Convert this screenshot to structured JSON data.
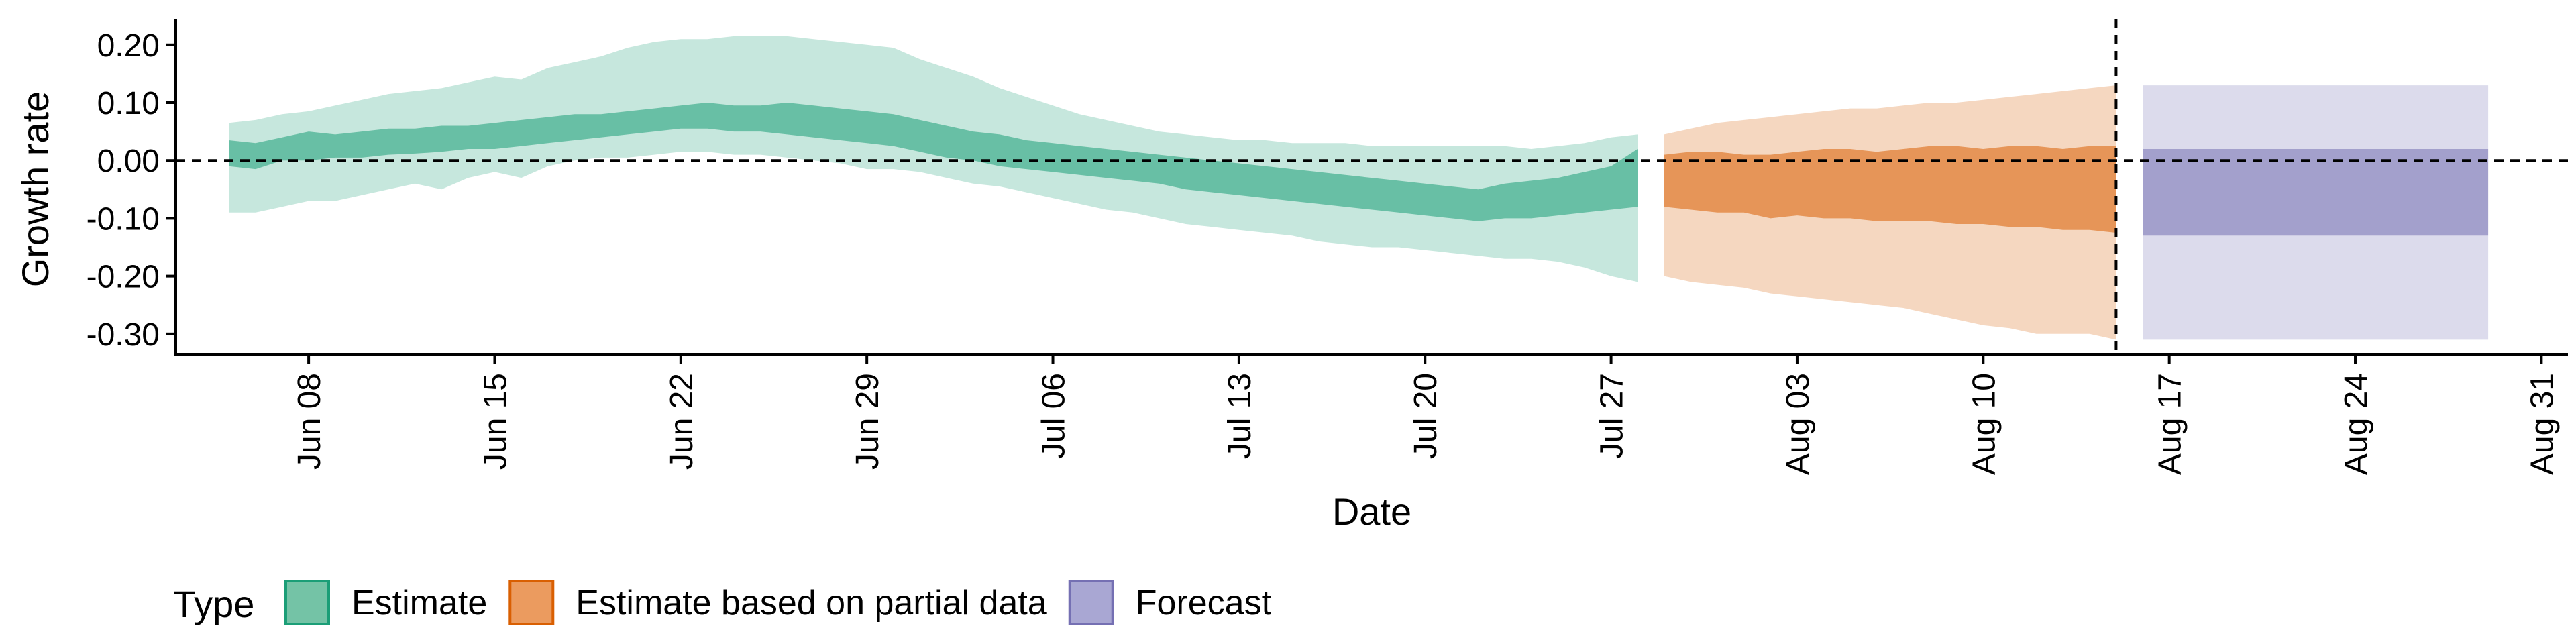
{
  "chart_data": {
    "type": "area",
    "xlabel": "Date",
    "ylabel": "Growth rate",
    "x_type": "date",
    "xlim": [
      "2020-06-03",
      "2020-09-01"
    ],
    "ylim": [
      -0.335,
      0.245
    ],
    "x_ticks": [
      {
        "date": "2020-06-08",
        "label": "Jun 08"
      },
      {
        "date": "2020-06-15",
        "label": "Jun 15"
      },
      {
        "date": "2020-06-22",
        "label": "Jun 22"
      },
      {
        "date": "2020-06-29",
        "label": "Jun 29"
      },
      {
        "date": "2020-07-06",
        "label": "Jul 06"
      },
      {
        "date": "2020-07-13",
        "label": "Jul 13"
      },
      {
        "date": "2020-07-20",
        "label": "Jul 20"
      },
      {
        "date": "2020-07-27",
        "label": "Jul 27"
      },
      {
        "date": "2020-08-03",
        "label": "Aug 03"
      },
      {
        "date": "2020-08-10",
        "label": "Aug 10"
      },
      {
        "date": "2020-08-17",
        "label": "Aug 17"
      },
      {
        "date": "2020-08-24",
        "label": "Aug 24"
      },
      {
        "date": "2020-08-31",
        "label": "Aug 31"
      }
    ],
    "y_ticks": [
      {
        "value": 0.2,
        "label": "0.20"
      },
      {
        "value": 0.1,
        "label": "0.10"
      },
      {
        "value": 0.0,
        "label": "0.00"
      },
      {
        "value": -0.1,
        "label": "-0.10"
      },
      {
        "value": -0.2,
        "label": "-0.20"
      },
      {
        "value": -0.3,
        "label": "-0.30"
      }
    ],
    "reference_lines": [
      {
        "axis": "y",
        "value": 0.0,
        "style": "dashed"
      },
      {
        "axis": "x",
        "value": "2020-08-15",
        "style": "dashed"
      }
    ],
    "grid": false,
    "legend": {
      "position": "bottom-left",
      "title": "Type",
      "items": [
        {
          "label": "Estimate",
          "fill": "#74c3a6",
          "border": "#1b9e77"
        },
        {
          "label": "Estimate based on partial data",
          "fill": "#eb9b5f",
          "border": "#d95f02"
        },
        {
          "label": "Forecast",
          "fill": "#a9a7d3",
          "border": "#7570b3"
        }
      ]
    },
    "series": [
      {
        "name": "Estimate",
        "color": "#1b9e77",
        "dates": [
          "2020-06-05",
          "2020-06-06",
          "2020-06-07",
          "2020-06-08",
          "2020-06-09",
          "2020-06-10",
          "2020-06-11",
          "2020-06-12",
          "2020-06-13",
          "2020-06-14",
          "2020-06-15",
          "2020-06-16",
          "2020-06-17",
          "2020-06-18",
          "2020-06-19",
          "2020-06-20",
          "2020-06-21",
          "2020-06-22",
          "2020-06-23",
          "2020-06-24",
          "2020-06-25",
          "2020-06-26",
          "2020-06-27",
          "2020-06-28",
          "2020-06-29",
          "2020-06-30",
          "2020-07-01",
          "2020-07-02",
          "2020-07-03",
          "2020-07-04",
          "2020-07-05",
          "2020-07-06",
          "2020-07-07",
          "2020-07-08",
          "2020-07-09",
          "2020-07-10",
          "2020-07-11",
          "2020-07-12",
          "2020-07-13",
          "2020-07-14",
          "2020-07-15",
          "2020-07-16",
          "2020-07-17",
          "2020-07-18",
          "2020-07-19",
          "2020-07-20",
          "2020-07-21",
          "2020-07-22",
          "2020-07-23",
          "2020-07-24",
          "2020-07-25",
          "2020-07-26",
          "2020-07-27",
          "2020-07-28"
        ],
        "lower_90": [
          -0.09,
          -0.09,
          -0.08,
          -0.07,
          -0.07,
          -0.06,
          -0.05,
          -0.04,
          -0.05,
          -0.03,
          -0.02,
          -0.03,
          -0.01,
          0.0,
          0.005,
          0.005,
          0.01,
          0.015,
          0.015,
          0.01,
          0.01,
          0.005,
          0.0,
          -0.005,
          -0.015,
          -0.015,
          -0.02,
          -0.03,
          -0.04,
          -0.045,
          -0.055,
          -0.065,
          -0.075,
          -0.085,
          -0.09,
          -0.1,
          -0.11,
          -0.115,
          -0.12,
          -0.125,
          -0.13,
          -0.14,
          -0.145,
          -0.15,
          -0.15,
          -0.155,
          -0.16,
          -0.165,
          -0.17,
          -0.17,
          -0.175,
          -0.185,
          -0.2,
          -0.21
        ],
        "lower_50": [
          -0.01,
          -0.015,
          0.0,
          0.0,
          0.005,
          0.005,
          0.01,
          0.012,
          0.015,
          0.02,
          0.02,
          0.025,
          0.03,
          0.035,
          0.04,
          0.045,
          0.05,
          0.055,
          0.055,
          0.05,
          0.05,
          0.045,
          0.04,
          0.035,
          0.03,
          0.025,
          0.015,
          0.005,
          0.0,
          -0.01,
          -0.015,
          -0.02,
          -0.025,
          -0.03,
          -0.035,
          -0.04,
          -0.05,
          -0.055,
          -0.06,
          -0.065,
          -0.07,
          -0.075,
          -0.08,
          -0.085,
          -0.09,
          -0.095,
          -0.1,
          -0.105,
          -0.1,
          -0.1,
          -0.095,
          -0.09,
          -0.085,
          -0.08
        ],
        "upper_50": [
          0.035,
          0.03,
          0.04,
          0.05,
          0.045,
          0.05,
          0.055,
          0.055,
          0.06,
          0.06,
          0.065,
          0.07,
          0.075,
          0.08,
          0.08,
          0.085,
          0.09,
          0.095,
          0.1,
          0.095,
          0.095,
          0.1,
          0.095,
          0.09,
          0.085,
          0.08,
          0.07,
          0.06,
          0.05,
          0.045,
          0.035,
          0.03,
          0.025,
          0.02,
          0.015,
          0.01,
          0.005,
          0.0,
          -0.005,
          -0.01,
          -0.015,
          -0.02,
          -0.025,
          -0.03,
          -0.035,
          -0.04,
          -0.045,
          -0.05,
          -0.04,
          -0.035,
          -0.03,
          -0.02,
          -0.01,
          0.02
        ],
        "upper_90": [
          0.065,
          0.07,
          0.08,
          0.085,
          0.095,
          0.105,
          0.115,
          0.12,
          0.125,
          0.135,
          0.145,
          0.14,
          0.16,
          0.17,
          0.18,
          0.195,
          0.205,
          0.21,
          0.21,
          0.215,
          0.215,
          0.215,
          0.21,
          0.205,
          0.2,
          0.195,
          0.175,
          0.16,
          0.145,
          0.125,
          0.11,
          0.095,
          0.08,
          0.07,
          0.06,
          0.05,
          0.045,
          0.04,
          0.035,
          0.035,
          0.03,
          0.03,
          0.03,
          0.025,
          0.025,
          0.025,
          0.025,
          0.025,
          0.025,
          0.02,
          0.025,
          0.03,
          0.04,
          0.045
        ]
      },
      {
        "name": "Estimate based on partial data",
        "color": "#d95f02",
        "dates": [
          "2020-07-29",
          "2020-07-30",
          "2020-07-31",
          "2020-08-01",
          "2020-08-02",
          "2020-08-03",
          "2020-08-04",
          "2020-08-05",
          "2020-08-06",
          "2020-08-07",
          "2020-08-08",
          "2020-08-09",
          "2020-08-10",
          "2020-08-11",
          "2020-08-12",
          "2020-08-13",
          "2020-08-14",
          "2020-08-15"
        ],
        "lower_90": [
          -0.2,
          -0.21,
          -0.215,
          -0.22,
          -0.23,
          -0.235,
          -0.24,
          -0.245,
          -0.25,
          -0.255,
          -0.265,
          -0.275,
          -0.285,
          -0.29,
          -0.3,
          -0.3,
          -0.3,
          -0.31
        ],
        "lower_50": [
          -0.08,
          -0.085,
          -0.09,
          -0.09,
          -0.1,
          -0.095,
          -0.1,
          -0.1,
          -0.105,
          -0.105,
          -0.105,
          -0.11,
          -0.11,
          -0.115,
          -0.115,
          -0.12,
          -0.12,
          -0.125
        ],
        "upper_50": [
          0.01,
          0.015,
          0.015,
          0.01,
          0.01,
          0.015,
          0.02,
          0.02,
          0.015,
          0.02,
          0.025,
          0.025,
          0.02,
          0.025,
          0.025,
          0.02,
          0.025,
          0.025
        ],
        "upper_90": [
          0.045,
          0.055,
          0.065,
          0.07,
          0.075,
          0.08,
          0.085,
          0.09,
          0.09,
          0.095,
          0.1,
          0.1,
          0.105,
          0.11,
          0.115,
          0.12,
          0.125,
          0.13
        ]
      },
      {
        "name": "Forecast",
        "color": "#7570b3",
        "dates": [
          "2020-08-16",
          "2020-08-29"
        ],
        "lower_90": [
          -0.31,
          -0.31
        ],
        "lower_50": [
          -0.13,
          -0.13
        ],
        "upper_50": [
          0.02,
          0.02
        ],
        "upper_90": [
          0.13,
          0.13
        ]
      }
    ]
  }
}
